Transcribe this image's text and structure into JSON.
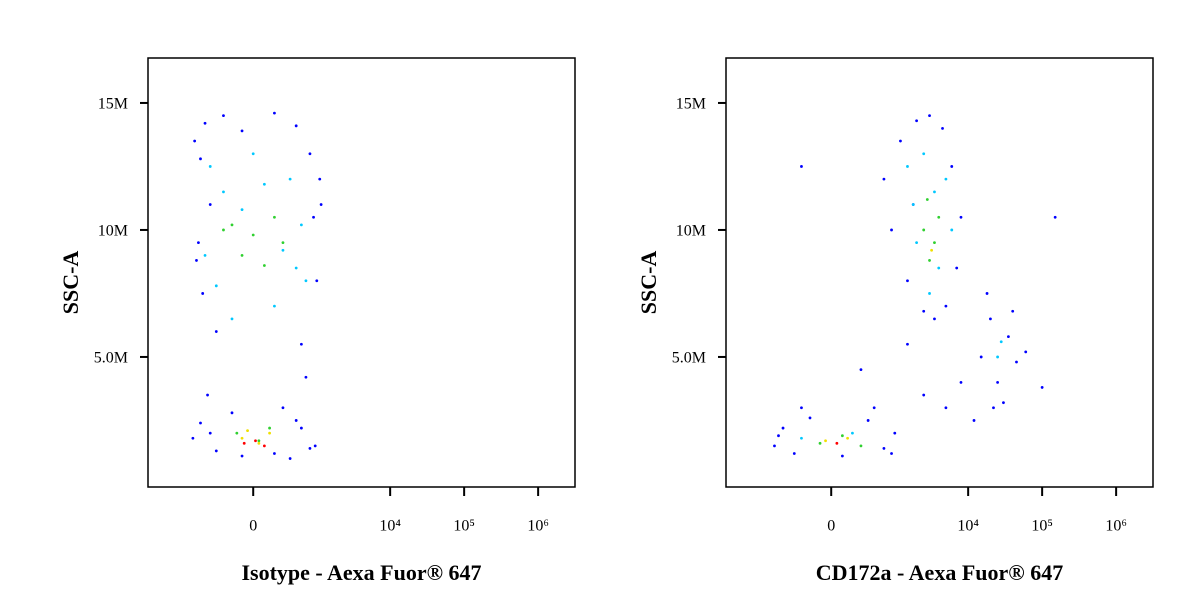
{
  "chart_data": [
    {
      "type": "scatter",
      "x_label": "Isotype - Aexa Fuor® 647",
      "y_label": "SSC-A",
      "xscale": "biexponential",
      "xlim": [
        -3720,
        3150000
      ],
      "ylim": [
        -120000,
        16770000
      ],
      "xticks": [
        0,
        {
          "value": 10000,
          "label": "10⁴"
        },
        {
          "value": 100000,
          "label": "10⁵"
        },
        {
          "value": 1000000,
          "label": "10⁶"
        }
      ],
      "yticks": [
        {
          "value": 5000000,
          "label": "5.0M"
        },
        {
          "value": 10000000,
          "label": "10M"
        },
        {
          "value": 15000000,
          "label": "15M"
        }
      ],
      "series": [
        {
          "color": "#0000ff",
          "x": [
            -850,
            -700,
            -600,
            -500,
            -300,
            -100,
            200,
            500,
            800,
            1100,
            -750,
            900,
            -650,
            1000,
            -400,
            600,
            -800,
            700,
            1150,
            -550,
            300,
            -200,
            950,
            -900,
            400,
            -700,
            -400,
            -100,
            200,
            500,
            800,
            -500,
            600
          ],
          "y": [
            13500000,
            12800000,
            14200000,
            11000000,
            14500000,
            13900000,
            14600000,
            14100000,
            13000000,
            12000000,
            9500000,
            10500000,
            7500000,
            8000000,
            6000000,
            5500000,
            8800000,
            4200000,
            11000000,
            3500000,
            3000000,
            2800000,
            1500000,
            1800000,
            1000000,
            2400000,
            1300000,
            1100000,
            1200000,
            2500000,
            1400000,
            2000000,
            2200000
          ]
        },
        {
          "color": "#00c8ff",
          "x": [
            -500,
            -300,
            -100,
            100,
            300,
            500,
            -400,
            200,
            600,
            -200,
            400,
            0,
            -600,
            700
          ],
          "y": [
            12500000,
            11500000,
            10800000,
            11800000,
            9200000,
            8500000,
            7800000,
            7000000,
            10200000,
            6500000,
            12000000,
            13000000,
            9000000,
            8000000
          ]
        },
        {
          "color": "#30d030",
          "x": [
            -200,
            0,
            200,
            -100,
            100,
            300,
            -300,
            -150,
            150,
            50
          ],
          "y": [
            10200000,
            9800000,
            10500000,
            9000000,
            8600000,
            9500000,
            10000000,
            2000000,
            2200000,
            1700000
          ]
        },
        {
          "color": "#f0e000",
          "x": [
            -100,
            50,
            150,
            -50
          ],
          "y": [
            1800000,
            1600000,
            2000000,
            2100000
          ]
        },
        {
          "color": "#ff0000",
          "x": [
            -80,
            20,
            100
          ],
          "y": [
            1600000,
            1700000,
            1500000
          ]
        }
      ]
    },
    {
      "type": "scatter",
      "x_label": "CD172a - Aexa Fuor® 647",
      "y_label": "SSC-A",
      "xscale": "biexponential",
      "xlim": [
        -3720,
        3150000
      ],
      "ylim": [
        -120000,
        16770000
      ],
      "xticks": [
        0,
        {
          "value": 10000,
          "label": "10⁴"
        },
        {
          "value": 100000,
          "label": "10⁵"
        },
        {
          "value": 1000000,
          "label": "10⁶"
        }
      ],
      "yticks": [
        {
          "value": 5000000,
          "label": "5.0M"
        },
        {
          "value": 10000000,
          "label": "10M"
        },
        {
          "value": 15000000,
          "label": "15M"
        }
      ],
      "series": [
        {
          "color": "#0000ff",
          "x": [
            -800,
            -600,
            -400,
            -200,
            100,
            400,
            700,
            1000,
            -700,
            900,
            -300,
            500,
            700,
            1200,
            2000,
            3000,
            4500,
            6000,
            8000,
            1500,
            2500,
            5000,
            900,
            7000,
            3500,
            1800,
            15000,
            20000,
            25000,
            35000,
            45000,
            30000,
            18000,
            22000,
            40000,
            300,
            1500,
            5000,
            12000,
            60000,
            100000,
            150000,
            -300,
            8000,
            2500
          ],
          "y": [
            1500000,
            2200000,
            1200000,
            2600000,
            1100000,
            2500000,
            1400000,
            2000000,
            1900000,
            1200000,
            3000000,
            3000000,
            12000000,
            13500000,
            14300000,
            14500000,
            14000000,
            12500000,
            10500000,
            8000000,
            6800000,
            7000000,
            10000000,
            8500000,
            6500000,
            11000000,
            5000000,
            6500000,
            4000000,
            5800000,
            4800000,
            3200000,
            7500000,
            3000000,
            6800000,
            4500000,
            5500000,
            3000000,
            2500000,
            5200000,
            3800000,
            10500000,
            12500000,
            4000000,
            3500000
          ]
        },
        {
          "color": "#00c8ff",
          "x": [
            1500,
            2500,
            3500,
            5000,
            2000,
            4000,
            3000,
            6000,
            1800,
            28000,
            25000,
            -300,
            200
          ],
          "y": [
            12500000,
            13000000,
            11500000,
            12000000,
            9500000,
            8500000,
            7500000,
            10000000,
            11000000,
            5600000,
            5000000,
            1800000,
            2000000
          ]
        },
        {
          "color": "#30d030",
          "x": [
            2500,
            3500,
            3000,
            4000,
            2800,
            -100,
            100,
            300
          ],
          "y": [
            10000000,
            9500000,
            8800000,
            10500000,
            11200000,
            1600000,
            1900000,
            1500000
          ]
        },
        {
          "color": "#f0e000",
          "x": [
            3200,
            -50,
            150
          ],
          "y": [
            9200000,
            1700000,
            1800000
          ]
        },
        {
          "color": "#ff0000",
          "x": [
            50
          ],
          "y": [
            1600000
          ]
        }
      ]
    }
  ]
}
